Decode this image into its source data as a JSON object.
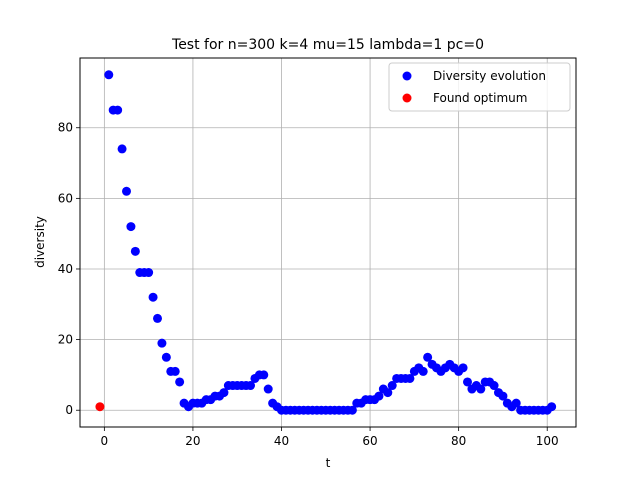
{
  "chart_data": {
    "type": "scatter",
    "title": "Test for n=300 k=4 mu=15 lambda=1 pc=0",
    "xlabel": "t",
    "ylabel": "diversity",
    "xlim": [
      -5.5,
      106.5
    ],
    "ylim": [
      -4.75,
      99.75
    ],
    "xticks": [
      0,
      20,
      40,
      60,
      80,
      100
    ],
    "yticks": [
      0,
      20,
      40,
      60,
      80
    ],
    "grid": true,
    "legend_position": "top-right",
    "series": [
      {
        "name": "Diversity evolution",
        "color": "#0000ff",
        "x": [
          1,
          2,
          3,
          4,
          5,
          6,
          7,
          8,
          9,
          10,
          11,
          12,
          13,
          14,
          15,
          16,
          17,
          18,
          19,
          20,
          21,
          22,
          23,
          24,
          25,
          26,
          27,
          28,
          29,
          30,
          31,
          32,
          33,
          34,
          35,
          36,
          37,
          38,
          39,
          40,
          41,
          42,
          43,
          44,
          45,
          46,
          47,
          48,
          49,
          50,
          51,
          52,
          53,
          54,
          55,
          56,
          57,
          58,
          59,
          60,
          61,
          62,
          63,
          64,
          65,
          66,
          67,
          68,
          69,
          70,
          71,
          72,
          73,
          74,
          75,
          76,
          77,
          78,
          79,
          80,
          81,
          82,
          83,
          84,
          85,
          86,
          87,
          88,
          89,
          90,
          91,
          92,
          93,
          94,
          95,
          96,
          97,
          98,
          99,
          100,
          101
        ],
        "y": [
          95,
          85,
          85,
          74,
          62,
          52,
          45,
          39,
          39,
          39,
          32,
          26,
          19,
          15,
          11,
          11,
          8,
          2,
          1,
          2,
          2,
          2,
          3,
          3,
          4,
          4,
          5,
          7,
          7,
          7,
          7,
          7,
          7,
          9,
          10,
          10,
          6,
          2,
          1,
          0,
          0,
          0,
          0,
          0,
          0,
          0,
          0,
          0,
          0,
          0,
          0,
          0,
          0,
          0,
          0,
          0,
          2,
          2,
          3,
          3,
          3,
          4,
          6,
          5,
          7,
          9,
          9,
          9,
          9,
          11,
          12,
          11,
          15,
          13,
          12,
          11,
          12,
          13,
          12,
          11,
          12,
          8,
          6,
          7,
          6,
          8,
          8,
          7,
          5,
          4,
          2,
          1,
          2,
          0,
          0,
          0,
          0,
          0,
          0,
          0,
          1
        ]
      },
      {
        "name": "Found optimum",
        "color": "#ff0000",
        "x": [
          -1
        ],
        "y": [
          1
        ]
      }
    ]
  }
}
